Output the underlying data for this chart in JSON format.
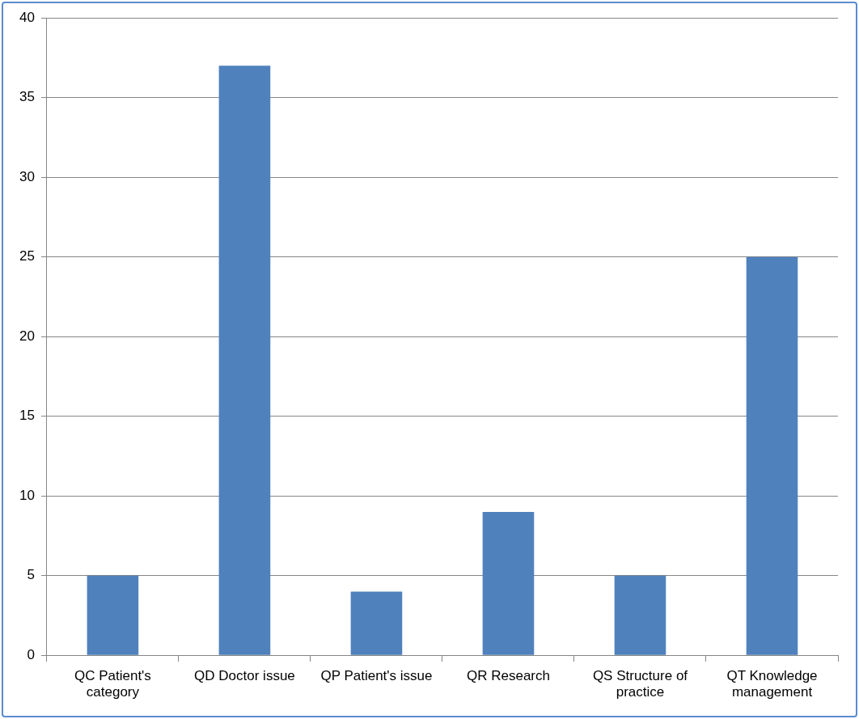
{
  "chart_data": {
    "type": "bar",
    "categories": [
      "QC Patient's category",
      "QD Doctor issue",
      "QP Patient's issue",
      "QR Research",
      "QS Structure of practice",
      "QT Knowledge management"
    ],
    "values": [
      5,
      37,
      4,
      9,
      5,
      25
    ],
    "color": "#4f81bd",
    "ylim": [
      0,
      40
    ],
    "yticks": [
      0,
      5,
      10,
      15,
      20,
      25,
      30,
      35,
      40
    ],
    "grid": "y"
  }
}
